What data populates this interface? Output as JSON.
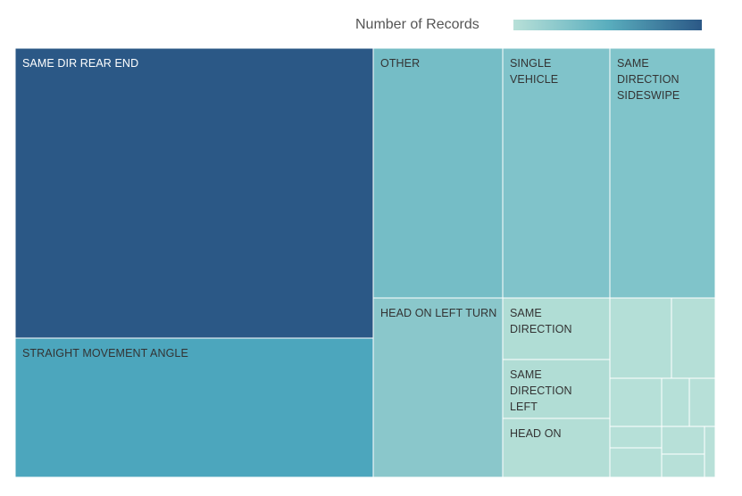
{
  "legend": {
    "title": "Number of Records",
    "gradient_colors": [
      "#b8e0d8",
      "#5aaebe",
      "#2b5886"
    ]
  },
  "chart_data": {
    "type": "treemap",
    "measure": "Number of Records",
    "items": [
      {
        "label": "SAME DIR REAR END",
        "value": 129,
        "color": "#2b5886"
      },
      {
        "label": "STRAIGHT MOVEMENT ANGLE",
        "value": 62,
        "color": "#4ca6bd"
      },
      {
        "label": "OTHER",
        "value": 41,
        "color": "#75bdc6"
      },
      {
        "label": "HEAD ON LEFT TURN",
        "value": 26,
        "color": "#8ac7cb"
      },
      {
        "label": "SINGLE VEHICLE",
        "value": 34,
        "color": "#80c3ca"
      },
      {
        "label": "SAME DIRECTION SIDESWIPE",
        "value": 33,
        "color": "#80c4ca"
      },
      {
        "label": "SAME DIRECTION",
        "value": 8,
        "color": "#b0ddd5"
      },
      {
        "label": "SAME DIRECTION LEFT",
        "value": 8,
        "color": "#b1ddd5"
      },
      {
        "label": "HEAD ON",
        "value": 8,
        "color": "#b3ded6"
      },
      {
        "label": "",
        "value": 5,
        "color": "#b4dfd7"
      },
      {
        "label": "",
        "value": 4,
        "color": "#b5dfd7"
      },
      {
        "label": "",
        "value": 2,
        "color": "#b6e0d8"
      },
      {
        "label": "",
        "value": 1,
        "color": "#b6e0d8"
      },
      {
        "label": "",
        "value": 1,
        "color": "#b7e0d8"
      },
      {
        "label": "",
        "value": 2,
        "color": "#b6e0d8"
      },
      {
        "label": "",
        "value": 2,
        "color": "#b6e0d8"
      },
      {
        "label": "",
        "value": 1,
        "color": "#b7e0d8"
      },
      {
        "label": "",
        "value": 1,
        "color": "#b7e0d8"
      },
      {
        "label": "",
        "value": 0.5,
        "color": "#b8e0d8"
      }
    ]
  }
}
